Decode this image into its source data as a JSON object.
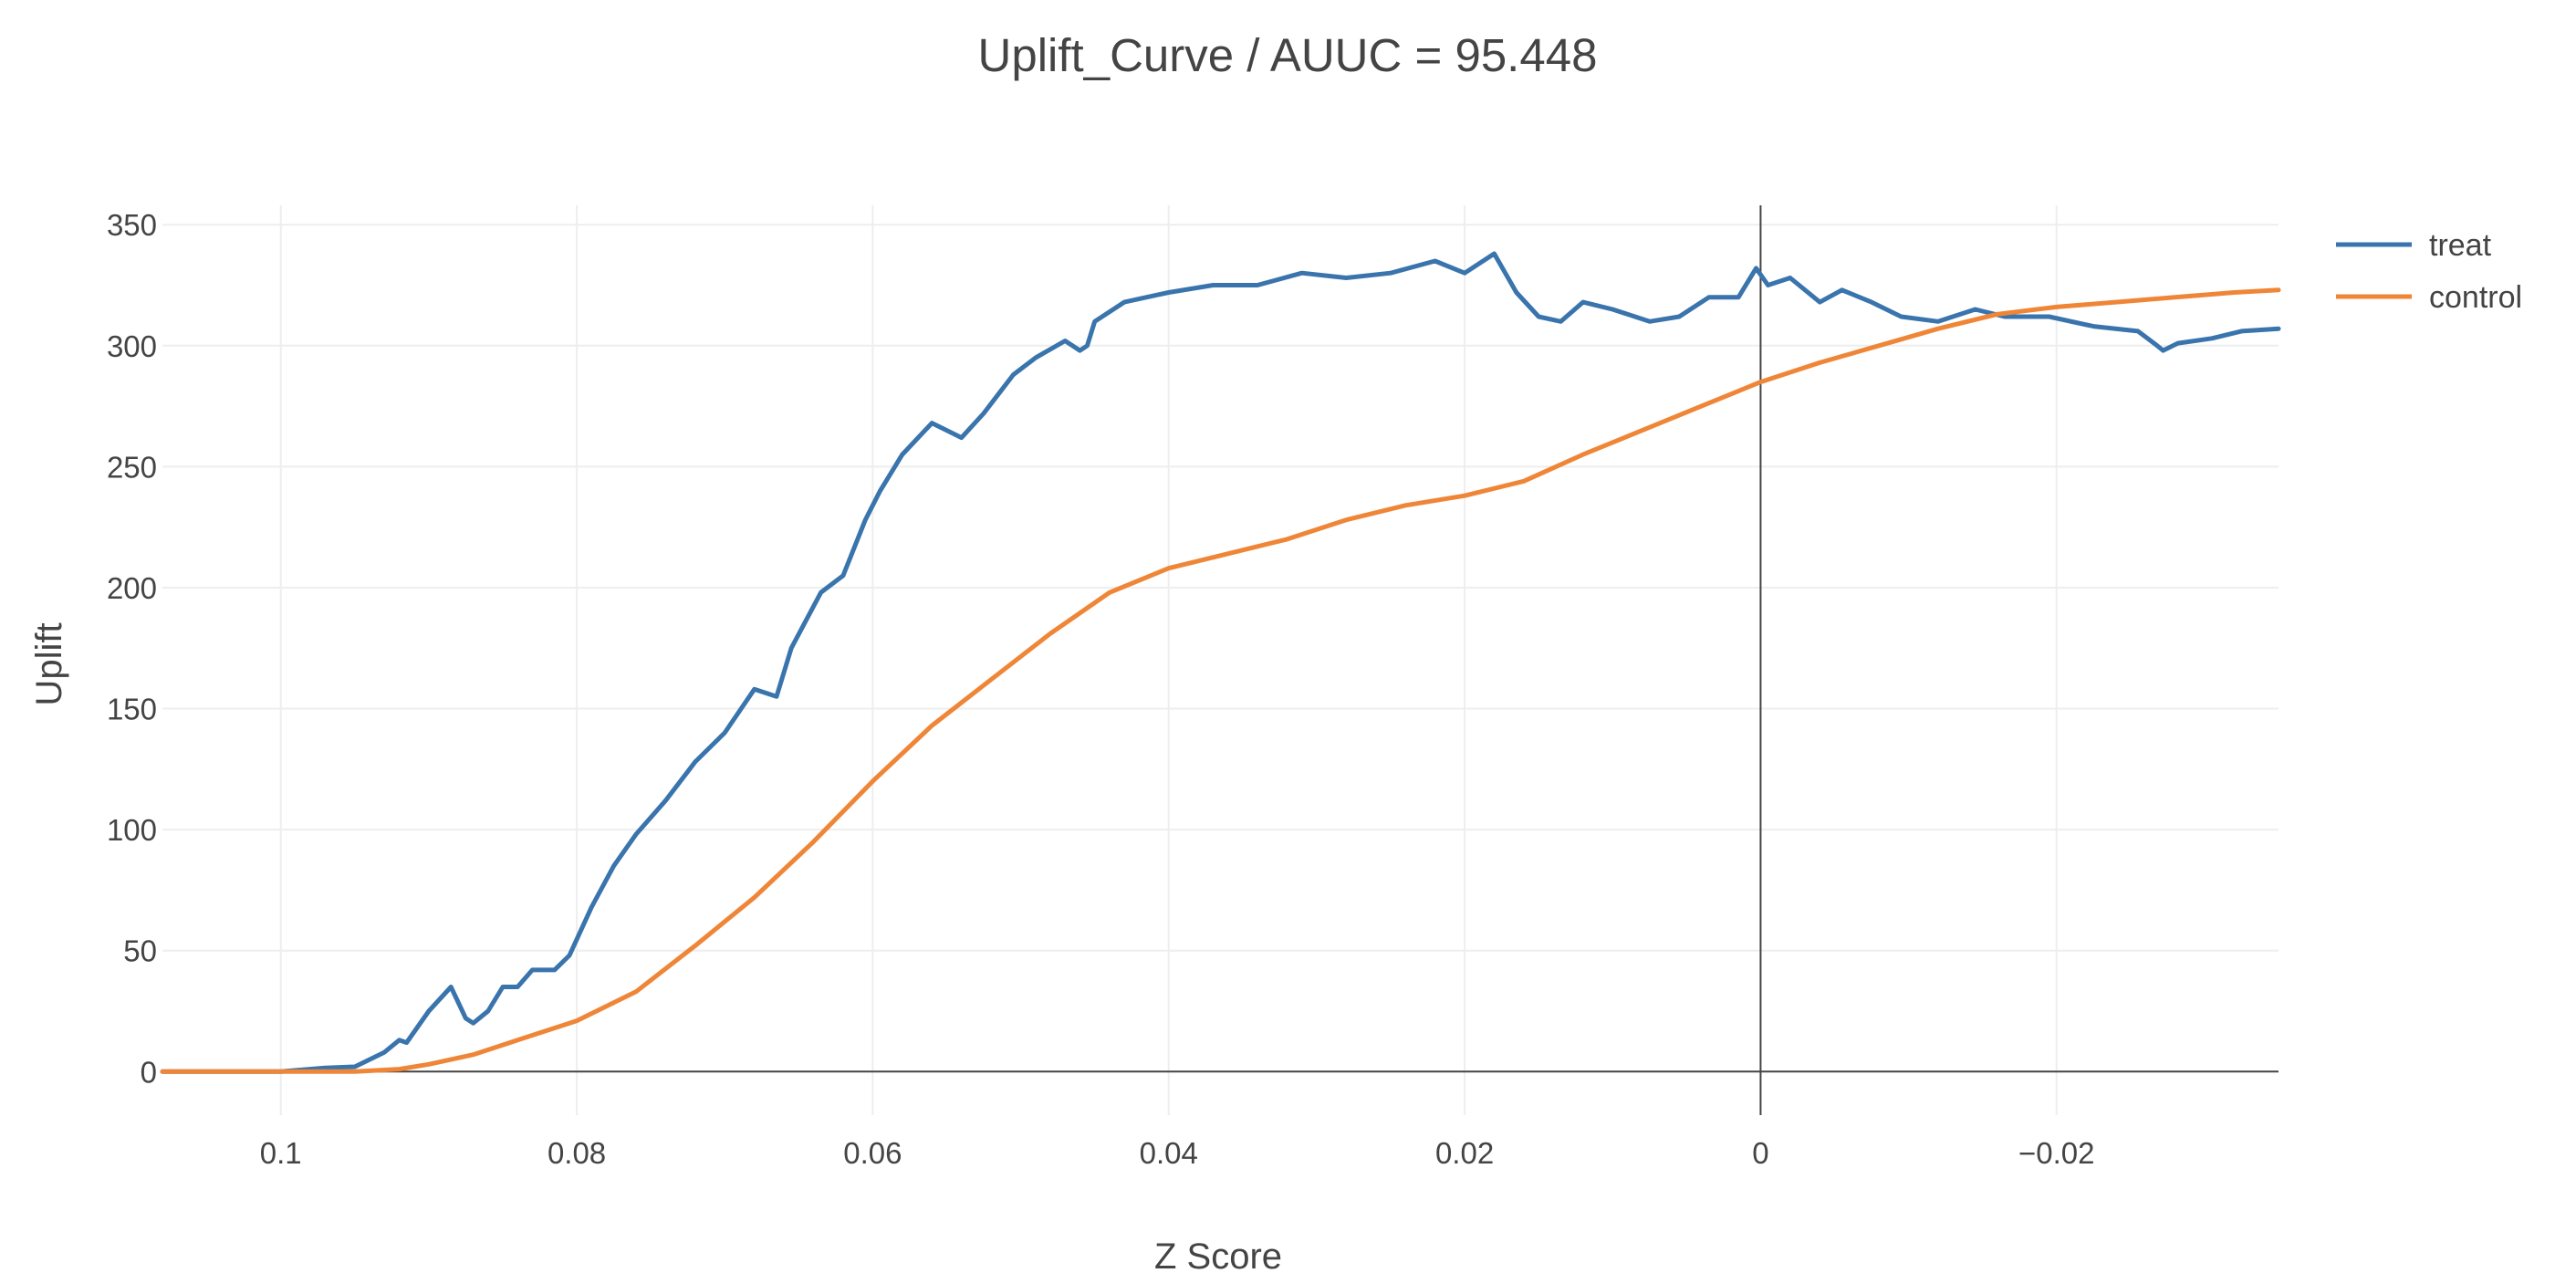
{
  "chart_data": {
    "type": "line",
    "title": "Uplift_Curve / AUUC = 95.448",
    "xlabel": "Z Score",
    "ylabel": "Uplift",
    "xlim": [
      0.108,
      -0.035
    ],
    "x_reversed": true,
    "ylim": [
      -18,
      358
    ],
    "x_ticks": [
      0.1,
      0.08,
      0.06,
      0.04,
      0.02,
      0,
      -0.02
    ],
    "x_tick_labels": [
      "0.1",
      "0.08",
      "0.06",
      "0.04",
      "0.02",
      "0",
      "−0.02"
    ],
    "y_ticks": [
      0,
      50,
      100,
      150,
      200,
      250,
      300,
      350
    ],
    "y_tick_labels": [
      "0",
      "50",
      "100",
      "150",
      "200",
      "250",
      "300",
      "350"
    ],
    "grid": true,
    "legend_position": "top-right",
    "zero_line_x": 0,
    "series": [
      {
        "name": "treat",
        "color": "#3a74ad",
        "x": [
          0.108,
          0.1,
          0.097,
          0.095,
          0.093,
          0.092,
          0.0915,
          0.09,
          0.0885,
          0.0875,
          0.087,
          0.086,
          0.085,
          0.084,
          0.083,
          0.0815,
          0.0805,
          0.079,
          0.0775,
          0.076,
          0.074,
          0.072,
          0.07,
          0.068,
          0.0665,
          0.0655,
          0.0635,
          0.062,
          0.0605,
          0.0595,
          0.058,
          0.056,
          0.054,
          0.0525,
          0.0515,
          0.0505,
          0.049,
          0.047,
          0.046,
          0.0455,
          0.045,
          0.043,
          0.04,
          0.037,
          0.034,
          0.031,
          0.028,
          0.025,
          0.022,
          0.02,
          0.018,
          0.0165,
          0.015,
          0.0135,
          0.012,
          0.01,
          0.0075,
          0.0055,
          0.0035,
          0.0015,
          0.0003,
          -0.0005,
          -0.002,
          -0.004,
          -0.0055,
          -0.0075,
          -0.0095,
          -0.012,
          -0.0145,
          -0.0165,
          -0.0195,
          -0.0225,
          -0.0255,
          -0.0268,
          -0.0272,
          -0.0282,
          -0.0305,
          -0.0325,
          -0.035
        ],
        "y": [
          0,
          0,
          1.5,
          2,
          8,
          13,
          12,
          25,
          35,
          22,
          20,
          25,
          35,
          35,
          42,
          42,
          48,
          68,
          85,
          98,
          112,
          128,
          140,
          158,
          155,
          175,
          198,
          205,
          228,
          240,
          255,
          268,
          262,
          272,
          280,
          288,
          295,
          302,
          298,
          300,
          310,
          318,
          322,
          325,
          325,
          330,
          328,
          330,
          335,
          330,
          338,
          322,
          312,
          310,
          318,
          315,
          310,
          312,
          320,
          320,
          332,
          325,
          328,
          318,
          323,
          318,
          312,
          310,
          315,
          312,
          312,
          308,
          306,
          300,
          298,
          301,
          303,
          306,
          307
        ]
      },
      {
        "name": "control",
        "color": "#ef8637",
        "x": [
          0.108,
          0.1,
          0.095,
          0.092,
          0.09,
          0.087,
          0.084,
          0.08,
          0.076,
          0.072,
          0.068,
          0.064,
          0.06,
          0.056,
          0.052,
          0.048,
          0.044,
          0.04,
          0.036,
          0.032,
          0.028,
          0.024,
          0.02,
          0.016,
          0.012,
          0.008,
          0.004,
          0,
          -0.004,
          -0.008,
          -0.012,
          -0.016,
          -0.02,
          -0.024,
          -0.028,
          -0.032,
          -0.035
        ],
        "y": [
          0,
          0,
          0,
          1,
          3,
          7,
          13,
          21,
          33,
          52,
          72,
          95,
          120,
          143,
          162,
          181,
          198,
          208,
          214,
          220,
          228,
          234,
          238,
          244,
          255,
          265,
          275,
          285,
          293,
          300,
          307,
          313,
          316,
          318,
          320,
          322,
          323
        ]
      }
    ]
  }
}
